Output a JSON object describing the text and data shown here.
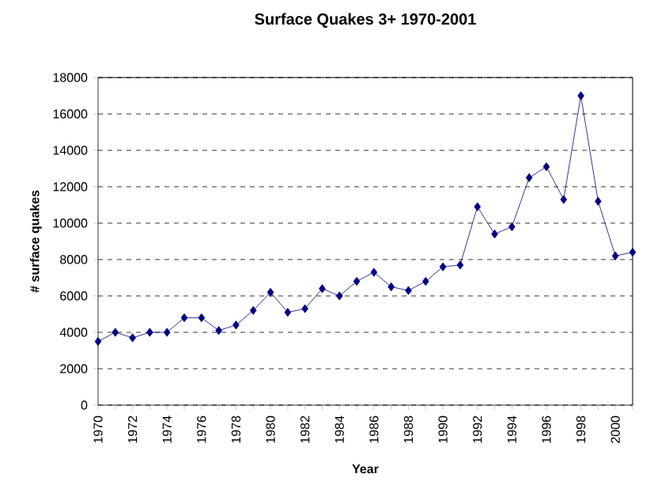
{
  "chart_data": {
    "type": "line",
    "title": "Surface Quakes 3+ 1970-2001",
    "xlabel": "Year",
    "ylabel": "# surface quakes",
    "x": [
      1970,
      1971,
      1972,
      1973,
      1974,
      1975,
      1976,
      1977,
      1978,
      1979,
      1980,
      1981,
      1982,
      1983,
      1984,
      1985,
      1986,
      1987,
      1988,
      1989,
      1990,
      1991,
      1992,
      1993,
      1994,
      1995,
      1996,
      1997,
      1998,
      1999,
      2000,
      2001
    ],
    "series": [
      {
        "color": "#000080",
        "values": [
          3500,
          4000,
          3700,
          4000,
          4000,
          4800,
          4800,
          4100,
          4400,
          5200,
          6200,
          5100,
          5300,
          6400,
          6000,
          6800,
          7300,
          6500,
          6300,
          6800,
          7600,
          7700,
          10900,
          9400,
          9800,
          12500,
          13100,
          11300,
          17000,
          11200,
          8200,
          8400
        ]
      }
    ],
    "xlim": [
      1970,
      2001
    ],
    "xticks": [
      1970,
      {
        "value": 1971,
        "label": null
      },
      1972,
      {
        "value": 1973,
        "label": null
      },
      1974,
      {
        "value": 1975,
        "label": null
      },
      1976,
      {
        "value": 1977,
        "label": null
      },
      1978,
      {
        "value": 1979,
        "label": null
      },
      1980,
      {
        "value": 1981,
        "label": null
      },
      1982,
      {
        "value": 1983,
        "label": null
      },
      1984,
      {
        "value": 1985,
        "label": null
      },
      1986,
      {
        "value": 1987,
        "label": null
      },
      1988,
      {
        "value": 1989,
        "label": null
      },
      1990,
      {
        "value": 1991,
        "label": null
      },
      1992,
      {
        "value": 1993,
        "label": null
      },
      1994,
      {
        "value": 1995,
        "label": null
      },
      1996,
      {
        "value": 1997,
        "label": null
      },
      1998,
      {
        "value": 1999,
        "label": null
      },
      2000,
      {
        "value": 2001,
        "label": null
      }
    ],
    "ylim": [
      0,
      18000
    ],
    "yticks": [
      0,
      2000,
      4000,
      6000,
      8000,
      10000,
      12000,
      14000,
      16000,
      18000
    ],
    "grid": "y",
    "marker": "diamond",
    "line_style": "solid"
  }
}
